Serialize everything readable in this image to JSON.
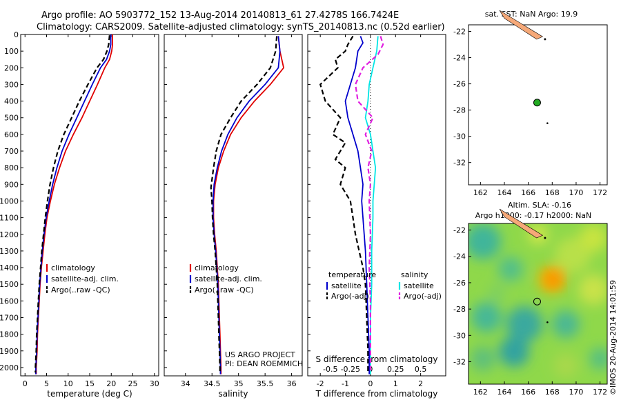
{
  "header": {
    "line1": "Argo profile: AO 5903772_152 13-Aug-2014 20140813_61 27.4278S 166.7424E",
    "line2": "Climatology: CARS2009. Satellite-adjusted climatology: synTS_20140813.nc (0.52d earlier)"
  },
  "colors": {
    "climatology": "#e00000",
    "satellite": "#0000cc",
    "argo": "#000000",
    "sal_satellite": "#00e5e5",
    "sal_argo": "#e020e0"
  },
  "chart_data": [
    {
      "id": "temperature",
      "type": "line",
      "xlabel": "temperature (deg C)",
      "ylabel": "",
      "xlim": [
        -1,
        31
      ],
      "ylim": [
        2050,
        0
      ],
      "xticks": [
        0,
        5,
        10,
        15,
        20,
        25,
        30
      ],
      "yticks": [
        0,
        100,
        200,
        300,
        400,
        500,
        600,
        700,
        800,
        900,
        1000,
        1100,
        1200,
        1300,
        1400,
        1500,
        1600,
        1700,
        1800,
        1900,
        2000
      ],
      "legend": [
        "climatology",
        "satellite-adj. clim.",
        "Argo(..raw -QC)"
      ],
      "series": [
        {
          "name": "climatology",
          "color": "#e00000",
          "style": "solid",
          "points": [
            [
              20.3,
              0
            ],
            [
              20.3,
              60
            ],
            [
              20.1,
              100
            ],
            [
              19.6,
              150
            ],
            [
              18.5,
              200
            ],
            [
              16.8,
              300
            ],
            [
              15.0,
              400
            ],
            [
              13.2,
              500
            ],
            [
              11.2,
              600
            ],
            [
              9.4,
              700
            ],
            [
              8.0,
              800
            ],
            [
              6.8,
              900
            ],
            [
              5.9,
              1000
            ],
            [
              5.1,
              1100
            ],
            [
              4.6,
              1200
            ],
            [
              4.2,
              1300
            ],
            [
              3.8,
              1400
            ],
            [
              3.5,
              1500
            ],
            [
              3.3,
              1600
            ],
            [
              3.1,
              1700
            ],
            [
              2.9,
              1800
            ],
            [
              2.8,
              1900
            ],
            [
              2.6,
              2000
            ],
            [
              2.6,
              2040
            ]
          ]
        },
        {
          "name": "satellite-adj. clim.",
          "color": "#0000cc",
          "style": "solid",
          "points": [
            [
              19.9,
              0
            ],
            [
              19.9,
              60
            ],
            [
              19.6,
              100
            ],
            [
              18.9,
              150
            ],
            [
              17.5,
              200
            ],
            [
              15.6,
              300
            ],
            [
              13.8,
              400
            ],
            [
              12.0,
              500
            ],
            [
              10.2,
              600
            ],
            [
              8.6,
              700
            ],
            [
              7.4,
              800
            ],
            [
              6.4,
              900
            ],
            [
              5.6,
              1000
            ],
            [
              4.9,
              1100
            ],
            [
              4.4,
              1200
            ],
            [
              4.0,
              1300
            ],
            [
              3.7,
              1400
            ],
            [
              3.4,
              1500
            ],
            [
              3.2,
              1600
            ],
            [
              3.0,
              1700
            ],
            [
              2.8,
              1800
            ],
            [
              2.7,
              1900
            ],
            [
              2.5,
              2000
            ],
            [
              2.5,
              2040
            ]
          ]
        },
        {
          "name": "Argo(..raw -QC)",
          "color": "#000000",
          "style": "dashed",
          "points": [
            [
              19.6,
              5
            ],
            [
              19.4,
              60
            ],
            [
              19.0,
              100
            ],
            [
              18.2,
              150
            ],
            [
              16.7,
              200
            ],
            [
              14.6,
              300
            ],
            [
              12.6,
              400
            ],
            [
              10.8,
              500
            ],
            [
              9.0,
              600
            ],
            [
              7.6,
              700
            ],
            [
              6.6,
              800
            ],
            [
              5.8,
              900
            ],
            [
              5.2,
              1000
            ],
            [
              4.7,
              1100
            ],
            [
              4.3,
              1200
            ],
            [
              3.9,
              1300
            ],
            [
              3.6,
              1400
            ],
            [
              3.3,
              1500
            ],
            [
              3.1,
              1600
            ],
            [
              2.9,
              1700
            ],
            [
              2.7,
              1800
            ],
            [
              2.6,
              1900
            ],
            [
              2.4,
              2000
            ],
            [
              2.4,
              2030
            ]
          ]
        }
      ]
    },
    {
      "id": "salinity",
      "type": "line",
      "xlabel": "salinity",
      "xlim": [
        33.6,
        36.2
      ],
      "ylim": [
        2050,
        0
      ],
      "xticks": [
        34,
        34.5,
        35,
        35.5,
        36
      ],
      "legend": [
        "climatology",
        "satellite-adj. clim.",
        "Argo(..raw -QC)"
      ],
      "annotation": [
        "US ARGO PROJECT",
        "PI: DEAN ROEMMICH"
      ],
      "series": [
        {
          "name": "climatology",
          "color": "#e00000",
          "style": "solid",
          "points": [
            [
              35.75,
              10
            ],
            [
              35.78,
              100
            ],
            [
              35.85,
              200
            ],
            [
              35.6,
              300
            ],
            [
              35.3,
              400
            ],
            [
              35.05,
              500
            ],
            [
              34.85,
              600
            ],
            [
              34.72,
              700
            ],
            [
              34.62,
              800
            ],
            [
              34.56,
              900
            ],
            [
              34.53,
              1000
            ],
            [
              34.53,
              1100
            ],
            [
              34.55,
              1200
            ],
            [
              34.58,
              1300
            ],
            [
              34.6,
              1400
            ],
            [
              34.62,
              1500
            ],
            [
              34.63,
              1600
            ],
            [
              34.64,
              1700
            ],
            [
              34.65,
              1800
            ],
            [
              34.66,
              1900
            ],
            [
              34.67,
              2000
            ],
            [
              34.67,
              2040
            ]
          ]
        },
        {
          "name": "satellite-adj. clim.",
          "color": "#0000cc",
          "style": "solid",
          "points": [
            [
              35.75,
              10
            ],
            [
              35.78,
              100
            ],
            [
              35.75,
              200
            ],
            [
              35.5,
              300
            ],
            [
              35.2,
              400
            ],
            [
              34.97,
              500
            ],
            [
              34.8,
              600
            ],
            [
              34.68,
              700
            ],
            [
              34.6,
              800
            ],
            [
              34.54,
              900
            ],
            [
              34.52,
              1000
            ],
            [
              34.52,
              1100
            ],
            [
              34.54,
              1200
            ],
            [
              34.57,
              1300
            ],
            [
              34.59,
              1400
            ],
            [
              34.61,
              1500
            ],
            [
              34.62,
              1600
            ],
            [
              34.63,
              1700
            ],
            [
              34.64,
              1800
            ],
            [
              34.65,
              1900
            ],
            [
              34.66,
              2000
            ],
            [
              34.66,
              2040
            ]
          ]
        },
        {
          "name": "Argo(..raw -QC)",
          "color": "#000000",
          "style": "dashed",
          "points": [
            [
              35.72,
              10
            ],
            [
              35.7,
              100
            ],
            [
              35.6,
              200
            ],
            [
              35.35,
              300
            ],
            [
              35.05,
              400
            ],
            [
              34.85,
              500
            ],
            [
              34.67,
              600
            ],
            [
              34.58,
              700
            ],
            [
              34.53,
              800
            ],
            [
              34.48,
              920
            ],
            [
              34.5,
              1000
            ],
            [
              34.51,
              1100
            ],
            [
              34.53,
              1200
            ],
            [
              34.56,
              1300
            ],
            [
              34.58,
              1400
            ],
            [
              34.6,
              1500
            ],
            [
              34.61,
              1600
            ],
            [
              34.62,
              1700
            ],
            [
              34.63,
              1800
            ],
            [
              34.64,
              1900
            ],
            [
              34.65,
              2000
            ],
            [
              34.65,
              2030
            ]
          ]
        }
      ]
    },
    {
      "id": "difference",
      "type": "line",
      "xlabel": "T difference from climatology",
      "xlabel_top": "S difference from climatology",
      "xlim": [
        -2.5,
        3
      ],
      "ylim": [
        2050,
        0
      ],
      "xticks": [
        -2,
        -1,
        0,
        1,
        2
      ],
      "xticks_top": [
        "-0.5",
        "-0.25",
        "0",
        "0.25",
        "0.5"
      ],
      "legend_headers": [
        "temperature",
        "salinity"
      ],
      "legend": [
        "satellite",
        "Argo(-adj)",
        "satellite",
        "Argo(-adj)"
      ],
      "series": [
        {
          "name": "temperature satellite",
          "color": "#0000cc",
          "style": "solid",
          "points": [
            [
              -0.4,
              10
            ],
            [
              -0.3,
              50
            ],
            [
              -0.5,
              100
            ],
            [
              -0.6,
              200
            ],
            [
              -0.8,
              300
            ],
            [
              -1.0,
              400
            ],
            [
              -0.9,
              500
            ],
            [
              -0.7,
              600
            ],
            [
              -0.5,
              700
            ],
            [
              -0.4,
              800
            ],
            [
              -0.3,
              900
            ],
            [
              -0.35,
              1000
            ],
            [
              -0.3,
              1100
            ],
            [
              -0.25,
              1200
            ],
            [
              -0.2,
              1300
            ],
            [
              -0.15,
              1500
            ],
            [
              -0.1,
              1700
            ],
            [
              -0.05,
              1900
            ],
            [
              -0.05,
              2040
            ]
          ]
        },
        {
          "name": "temperature Argo(-adj)",
          "color": "#000000",
          "style": "dashed",
          "points": [
            [
              -0.7,
              10
            ],
            [
              -0.9,
              60
            ],
            [
              -1.0,
              100
            ],
            [
              -1.4,
              150
            ],
            [
              -1.3,
              200
            ],
            [
              -2.0,
              300
            ],
            [
              -1.8,
              400
            ],
            [
              -1.2,
              500
            ],
            [
              -1.5,
              600
            ],
            [
              -1.0,
              650
            ],
            [
              -1.4,
              750
            ],
            [
              -1.0,
              800
            ],
            [
              -1.2,
              900
            ],
            [
              -0.8,
              1000
            ],
            [
              -0.7,
              1100
            ],
            [
              -0.6,
              1200
            ],
            [
              -0.45,
              1300
            ],
            [
              -0.3,
              1400
            ],
            [
              -0.2,
              1500
            ],
            [
              -0.15,
              1700
            ],
            [
              -0.1,
              1900
            ],
            [
              -0.1,
              2030
            ]
          ]
        },
        {
          "name": "salinity satellite",
          "color": "#00e5e5",
          "style": "solid",
          "points": [
            [
              0.3,
              10
            ],
            [
              0.25,
              100
            ],
            [
              0.1,
              200
            ],
            [
              -0.05,
              300
            ],
            [
              -0.1,
              400
            ],
            [
              -0.2,
              500
            ],
            [
              0.0,
              600
            ],
            [
              0.1,
              700
            ],
            [
              0.2,
              800
            ],
            [
              0.15,
              900
            ],
            [
              0.1,
              1000
            ],
            [
              0.1,
              1100
            ],
            [
              0.05,
              1300
            ],
            [
              0.05,
              1500
            ],
            [
              0.0,
              1700
            ],
            [
              0.0,
              1900
            ],
            [
              0.0,
              2040
            ]
          ]
        },
        {
          "name": "salinity Argo(-adj)",
          "color": "#e020e0",
          "style": "dashed",
          "points": [
            [
              0.4,
              10
            ],
            [
              0.5,
              60
            ],
            [
              0.3,
              120
            ],
            [
              -0.3,
              200
            ],
            [
              -0.6,
              300
            ],
            [
              -0.5,
              400
            ],
            [
              0.1,
              500
            ],
            [
              -0.2,
              600
            ],
            [
              0.05,
              700
            ],
            [
              -0.1,
              800
            ],
            [
              0.0,
              900
            ],
            [
              -0.05,
              1000
            ],
            [
              0.0,
              1200
            ],
            [
              -0.05,
              1400
            ],
            [
              0.0,
              1600
            ],
            [
              0.0,
              1900
            ],
            [
              0.0,
              2030
            ]
          ]
        }
      ]
    }
  ],
  "maps": {
    "sst": {
      "title": "sat. SST: NaN Argo: 19.9",
      "xticks": [
        162,
        164,
        166,
        168,
        170,
        172
      ],
      "yticks": [
        -22,
        -24,
        -26,
        -28,
        -30,
        -32
      ],
      "xlim": [
        161,
        172.6
      ],
      "ylim": [
        -21.5,
        -33.7
      ],
      "float_lon": 166.74,
      "float_lat": -27.43,
      "float_color": "#22aa22"
    },
    "sla": {
      "title1": "Altim. SLA: -0.16",
      "title2": "Argo h1000: -0.17 h2000: NaN",
      "xticks": [
        162,
        164,
        166,
        168,
        170,
        172
      ],
      "yticks": [
        -22,
        -24,
        -26,
        -28,
        -30,
        -32
      ],
      "xlim": [
        161,
        172.6
      ],
      "ylim": [
        -21.5,
        -33.7
      ],
      "float_lon": 166.74,
      "float_lat": -27.43
    },
    "land_color": "#f5a878"
  },
  "stamp": "©IMOS 20-Aug-2014 14:01:59"
}
